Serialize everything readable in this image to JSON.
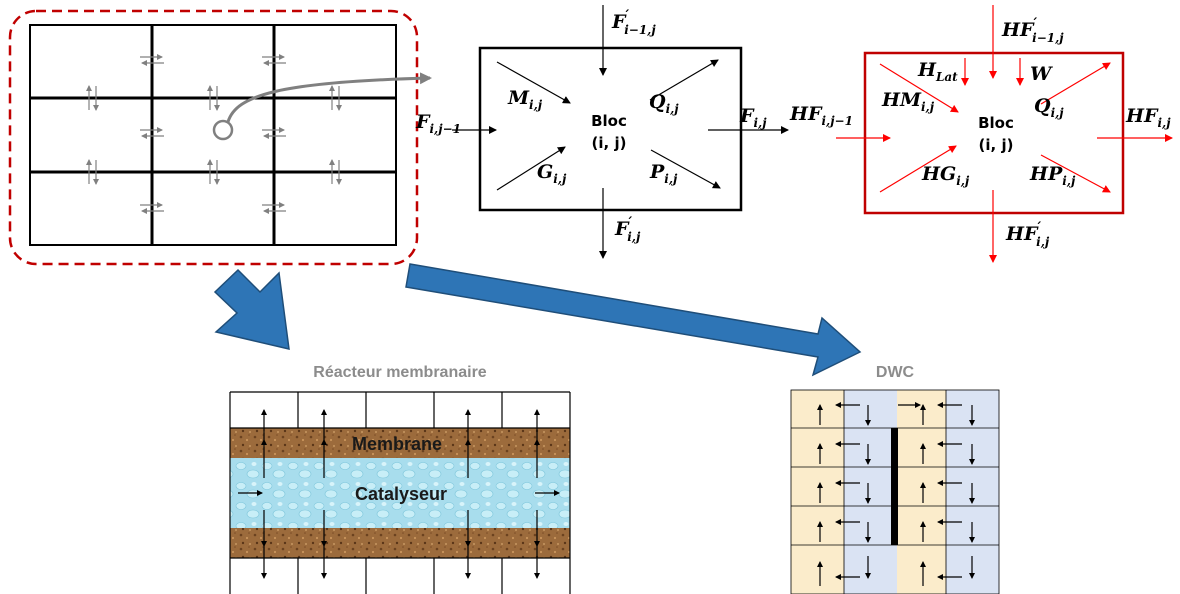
{
  "left_block": {
    "top": {
      "main": "F",
      "prime": "′",
      "sub": "i−1,j"
    },
    "left": {
      "main": "F",
      "sub": "i,j−1"
    },
    "right": {
      "main": "F",
      "sub": "i,j"
    },
    "bottom": {
      "main": "F",
      "prime": "′",
      "sub": "i,j"
    },
    "M": {
      "main": "M",
      "sub": "i,j"
    },
    "Q": {
      "main": "Q",
      "sub": "i,j"
    },
    "G": {
      "main": "G",
      "sub": "i,j"
    },
    "P": {
      "main": "P",
      "sub": "i,j"
    },
    "bloc_line1": "Bloc",
    "bloc_line2": "(i, j)"
  },
  "right_block": {
    "top": {
      "main": "HF",
      "prime": "′",
      "sub": "i−1,j"
    },
    "left": {
      "main": "HF",
      "sub": "i,j−1"
    },
    "right": {
      "main": "HF",
      "sub": "i,j"
    },
    "bottom": {
      "main": "HF",
      "prime": "′",
      "sub": "i,j"
    },
    "HM": {
      "main": "HM",
      "sub": "i,j"
    },
    "HQ": {
      "main": "Q",
      "sub": "i,j"
    },
    "HG": {
      "main": "HG",
      "sub": "i,j"
    },
    "HP": {
      "main": "HP",
      "sub": "i,j"
    },
    "HLat": {
      "main": "H",
      "sub": "Lat"
    },
    "W": {
      "main": "W"
    },
    "bloc_line1": "Bloc",
    "bloc_line2": "(i, j)"
  },
  "reactor": {
    "title": "Réacteur membranaire",
    "membrane": "Membrane",
    "catalyst": "Catalyseur"
  },
  "dwc": {
    "title": "DWC"
  },
  "colors": {
    "red": "#c00000",
    "arrow_red": "#ff0000",
    "blue_arrow": "#2e75b6",
    "membrane": "#9c6b3c",
    "catalyst": "#9fdcec",
    "dwc_yellow": "#fbeccb",
    "dwc_blue": "#dae3f3"
  }
}
